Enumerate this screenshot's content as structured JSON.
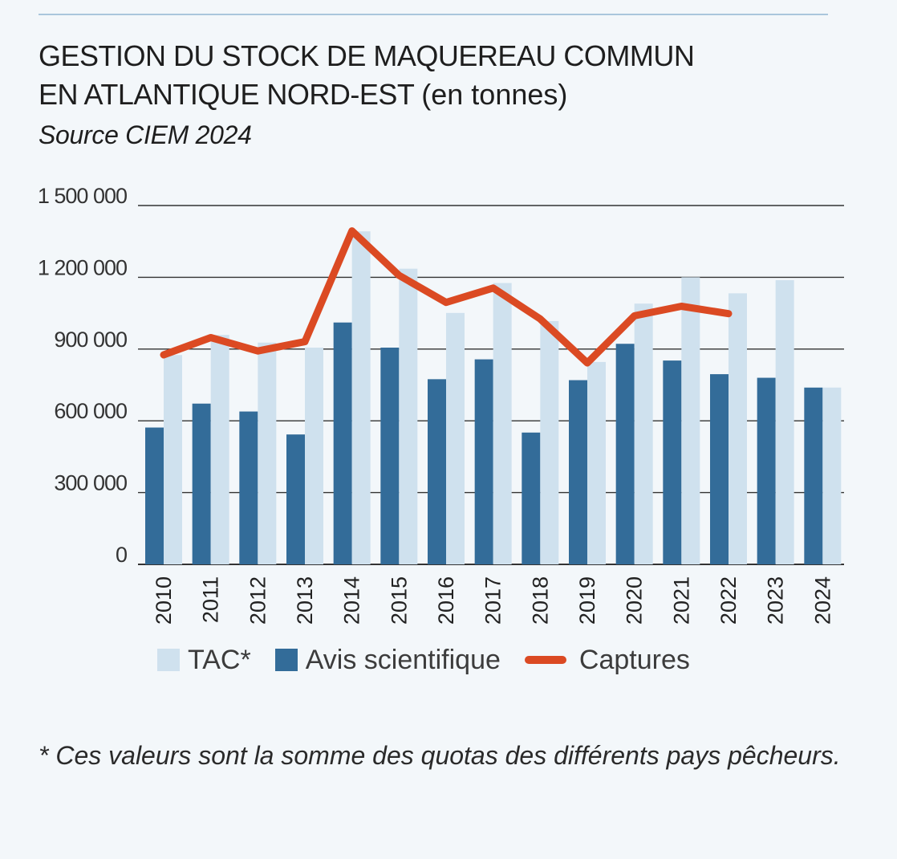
{
  "title_line1": "GESTION DU STOCK DE MAQUEREAU COMMUN",
  "title_line2": "EN ATLANTIQUE NORD-EST",
  "title_unit": "(en tonnes)",
  "source": "Source CIEM 2024",
  "footnote": "* Ces valeurs sont la somme des quotas des différents pays pêcheurs.",
  "colors": {
    "tac": "#cfe1ee",
    "avis": "#336c99",
    "captures": "#db4a23",
    "grid": "#333333"
  },
  "chart_data": {
    "type": "bar",
    "categories": [
      "2010",
      "2011",
      "2012",
      "2013",
      "2014",
      "2015",
      "2016",
      "2017",
      "2018",
      "2019",
      "2020",
      "2021",
      "2022",
      "2023",
      "2024"
    ],
    "ylim": [
      0,
      1500000
    ],
    "y_ticks": [
      0,
      300000,
      600000,
      900000,
      1200000,
      1500000
    ],
    "y_tick_labels": [
      "0",
      "300 000",
      "600 000",
      "900 000",
      "1 200 000",
      "1 500 000"
    ],
    "grid": true,
    "legend_position": "bottom",
    "series": [
      {
        "name": "Avis scientifique",
        "kind": "bar",
        "values": [
          572000,
          672000,
          639000,
          543000,
          1011000,
          906000,
          774000,
          857000,
          551000,
          770000,
          922000,
          852000,
          795000,
          780000,
          739000
        ]
      },
      {
        "name": "TAC*",
        "kind": "bar",
        "values": [
          875000,
          959000,
          927000,
          906000,
          1392000,
          1236000,
          1051000,
          1176000,
          1017000,
          846000,
          1090000,
          1200000,
          1133000,
          1188000,
          739000
        ]
      },
      {
        "name": "Captures",
        "kind": "line",
        "values": [
          876000,
          948000,
          892000,
          931000,
          1394000,
          1208000,
          1095000,
          1155000,
          1026000,
          842000,
          1039000,
          1079000,
          1048000,
          null,
          null
        ]
      }
    ]
  }
}
